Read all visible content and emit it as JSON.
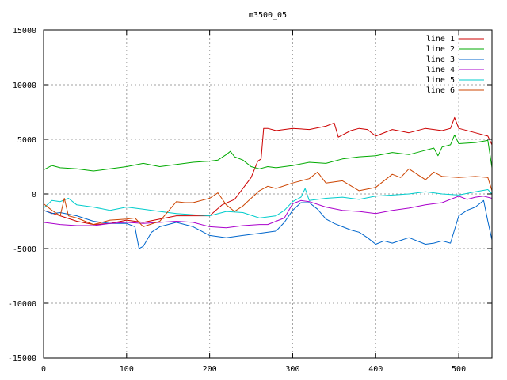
{
  "chart_data": {
    "type": "line",
    "title": "m3500_05",
    "xlabel": "",
    "ylabel": "",
    "xlim": [
      0,
      540
    ],
    "ylim": [
      -15000,
      15000
    ],
    "xticks": [
      0,
      100,
      200,
      300,
      400,
      500
    ],
    "yticks": [
      15000,
      10000,
      5000,
      0,
      -5000,
      -10000,
      -15000
    ],
    "xtick_labels": [
      "0",
      "100",
      "200",
      "300",
      "400",
      "500"
    ],
    "ytick_labels": [
      "15000",
      "10000",
      "5000",
      "0",
      "-5000",
      "-10000",
      "-15000"
    ],
    "grid": true,
    "legend": "top-right",
    "series": [
      {
        "name": "line 1",
        "color": "#cc0000",
        "x": [
          0,
          20,
          40,
          60,
          80,
          100,
          120,
          140,
          160,
          180,
          200,
          215,
          230,
          240,
          250,
          258,
          262,
          265,
          270,
          280,
          300,
          320,
          340,
          350,
          355,
          370,
          380,
          390,
          400,
          420,
          440,
          460,
          480,
          490,
          495,
          500,
          520,
          535,
          540
        ],
        "y": [
          -1500,
          -2000,
          -2500,
          -2800,
          -2700,
          -2400,
          -2600,
          -2300,
          -2000,
          -2000,
          -2000,
          -1000,
          -500,
          500,
          1500,
          3000,
          3200,
          6000,
          6000,
          5800,
          6000,
          5900,
          6200,
          6500,
          5200,
          5800,
          6000,
          5900,
          5300,
          5900,
          5600,
          6000,
          5800,
          6000,
          7000,
          6000,
          5600,
          5300,
          4500
        ]
      },
      {
        "name": "line 2",
        "color": "#00aa00",
        "x": [
          0,
          10,
          20,
          40,
          60,
          80,
          100,
          120,
          140,
          160,
          180,
          200,
          210,
          220,
          225,
          230,
          240,
          250,
          260,
          270,
          280,
          300,
          320,
          340,
          360,
          380,
          400,
          420,
          440,
          460,
          470,
          475,
          480,
          490,
          495,
          500,
          520,
          535,
          540
        ],
        "y": [
          2200,
          2600,
          2400,
          2300,
          2100,
          2300,
          2500,
          2800,
          2500,
          2700,
          2900,
          3000,
          3100,
          3600,
          3900,
          3400,
          3100,
          2500,
          2300,
          2500,
          2400,
          2600,
          2900,
          2800,
          3200,
          3400,
          3500,
          3800,
          3600,
          4000,
          4200,
          3500,
          4300,
          4500,
          5400,
          4600,
          4700,
          4900,
          2400
        ]
      },
      {
        "name": "line 3",
        "color": "#0066cc",
        "x": [
          0,
          10,
          20,
          40,
          60,
          80,
          100,
          110,
          115,
          120,
          130,
          140,
          160,
          180,
          200,
          220,
          240,
          260,
          280,
          290,
          300,
          310,
          320,
          330,
          340,
          350,
          360,
          370,
          380,
          390,
          400,
          410,
          420,
          440,
          460,
          470,
          480,
          490,
          500,
          510,
          520,
          530,
          535,
          540
        ],
        "y": [
          -1500,
          -1800,
          -1700,
          -2000,
          -2500,
          -2700,
          -2700,
          -3000,
          -5000,
          -4800,
          -3500,
          -3000,
          -2600,
          -3000,
          -3800,
          -4000,
          -3800,
          -3600,
          -3400,
          -2600,
          -1500,
          -800,
          -800,
          -1400,
          -2300,
          -2700,
          -3000,
          -3300,
          -3500,
          -4000,
          -4600,
          -4300,
          -4500,
          -4000,
          -4600,
          -4500,
          -4300,
          -4500,
          -2000,
          -1500,
          -1200,
          -600,
          -2500,
          -4200
        ]
      },
      {
        "name": "line 4",
        "color": "#aa00cc",
        "x": [
          0,
          20,
          40,
          60,
          80,
          100,
          120,
          140,
          160,
          180,
          200,
          220,
          240,
          260,
          270,
          280,
          290,
          300,
          310,
          320,
          340,
          360,
          380,
          400,
          420,
          440,
          460,
          480,
          490,
          500,
          510,
          520,
          530,
          540
        ],
        "y": [
          -2600,
          -2800,
          -2900,
          -2900,
          -2700,
          -2600,
          -2700,
          -2600,
          -2500,
          -2600,
          -3000,
          -3100,
          -2900,
          -2800,
          -2800,
          -2500,
          -2200,
          -900,
          -600,
          -700,
          -1200,
          -1500,
          -1600,
          -1800,
          -1500,
          -1300,
          -1000,
          -800,
          -500,
          -200,
          -500,
          -300,
          -200,
          -400
        ]
      },
      {
        "name": "line 5",
        "color": "#00cccc",
        "x": [
          0,
          10,
          20,
          30,
          40,
          60,
          80,
          100,
          120,
          140,
          160,
          180,
          200,
          220,
          240,
          260,
          280,
          290,
          300,
          310,
          315,
          320,
          340,
          360,
          380,
          400,
          420,
          440,
          460,
          480,
          500,
          520,
          535,
          540
        ],
        "y": [
          -1300,
          -600,
          -700,
          -400,
          -1000,
          -1200,
          -1500,
          -1200,
          -1400,
          -1600,
          -1800,
          -1900,
          -2000,
          -1600,
          -1700,
          -2200,
          -2000,
          -1500,
          -700,
          -300,
          500,
          -600,
          -400,
          -300,
          -500,
          -200,
          -100,
          0,
          200,
          0,
          -100,
          200,
          400,
          0
        ]
      },
      {
        "name": "line 6",
        "color": "#cc4400",
        "x": [
          0,
          10,
          20,
          25,
          30,
          40,
          60,
          80,
          100,
          110,
          120,
          140,
          150,
          160,
          170,
          180,
          200,
          210,
          220,
          230,
          240,
          250,
          260,
          270,
          280,
          300,
          320,
          330,
          340,
          360,
          380,
          400,
          420,
          430,
          440,
          460,
          470,
          480,
          500,
          520,
          535,
          540
        ],
        "y": [
          -900,
          -1500,
          -2000,
          -400,
          -2000,
          -2200,
          -2800,
          -2400,
          -2300,
          -2200,
          -3000,
          -2500,
          -1600,
          -700,
          -800,
          -800,
          -400,
          100,
          -1000,
          -1600,
          -1100,
          -400,
          300,
          700,
          500,
          1000,
          1400,
          2000,
          1000,
          1200,
          300,
          600,
          1800,
          1500,
          2300,
          1300,
          2000,
          1600,
          1500,
          1600,
          1500,
          300
        ]
      }
    ]
  }
}
